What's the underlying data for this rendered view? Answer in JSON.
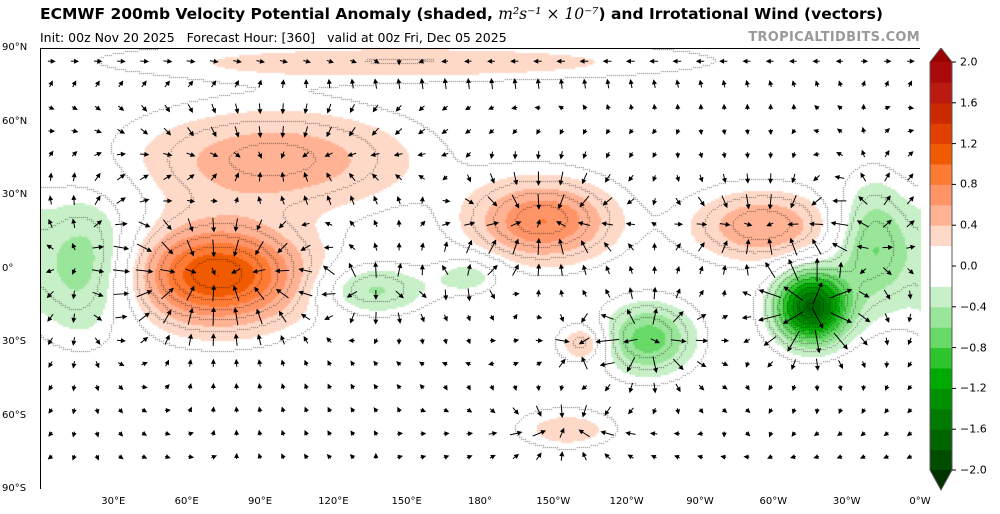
{
  "header": {
    "title_main": "ECMWF 200mb Velocity Potential Anomaly (shaded, ",
    "title_units": "m²s⁻¹ × 10⁻⁷",
    "title_end": ") and Irrotational Wind (vectors)",
    "init": "Init: 00z Nov 20 2025",
    "forecast_hour": "Forecast Hour: [360]",
    "valid": "valid at 00z Fri, Dec 05 2025",
    "brand": "TROPICALTIDBITS.COM"
  },
  "axes": {
    "lat_labels": [
      "90°N",
      "60°N",
      "30°N",
      "0°",
      "30°S",
      "60°S",
      "90°S"
    ],
    "lon_labels": [
      "30°E",
      "60°E",
      "90°E",
      "120°E",
      "150°E",
      "180°",
      "150°W",
      "120°W",
      "90°W",
      "60°W",
      "30°W",
      "0°W"
    ]
  },
  "colorbar": {
    "tick_labels": [
      "2.0",
      "1.6",
      "1.2",
      "0.8",
      "0.4",
      "0.0",
      "−0.4",
      "−0.8",
      "−1.2",
      "−1.6",
      "−2.0"
    ],
    "levels": [
      -2.0,
      -1.8,
      -1.6,
      -1.4,
      -1.2,
      -1.0,
      -0.8,
      -0.6,
      -0.4,
      -0.2,
      0.2,
      0.4,
      0.6,
      0.8,
      1.0,
      1.2,
      1.4,
      1.6,
      1.8,
      2.0
    ],
    "colors_neg": [
      "#003300",
      "#004d00",
      "#006400",
      "#007a00",
      "#009000",
      "#00aa00",
      "#2ec42e",
      "#66d966",
      "#99e599",
      "#c8f0c8"
    ],
    "color_zero": "#ffffff",
    "colors_pos": [
      "#ffd9c8",
      "#ffb394",
      "#ff9466",
      "#ff7a33",
      "#f05a00",
      "#e04000",
      "#cc2a00",
      "#bb1a10",
      "#aa0a0a",
      "#990000"
    ]
  },
  "chart_data": {
    "type": "heatmap",
    "title": "ECMWF 200mb Velocity Potential Anomaly and Irrotational Wind",
    "units": "m2 s-1 x 10^-7",
    "xlim": [
      0,
      360
    ],
    "ylim": [
      -90,
      90
    ],
    "anomaly_centers": [
      {
        "lon": 72,
        "lat": -2,
        "value": 1.2,
        "lon_radius": 35,
        "lat_radius": 20
      },
      {
        "lon": 95,
        "lat": 45,
        "value": 0.55,
        "lon_radius": 55,
        "lat_radius": 20
      },
      {
        "lon": 205,
        "lat": 20,
        "value": 0.8,
        "lon_radius": 28,
        "lat_radius": 16
      },
      {
        "lon": 295,
        "lat": 18,
        "value": 0.6,
        "lon_radius": 28,
        "lat_radius": 14
      },
      {
        "lon": 222,
        "lat": -30,
        "value": 0.4,
        "lon_radius": 10,
        "lat_radius": 8
      },
      {
        "lon": 215,
        "lat": -65,
        "value": 0.3,
        "lon_radius": 20,
        "lat_radius": 8
      },
      {
        "lon": 150,
        "lat": 85,
        "value": 0.3,
        "lon_radius": 120,
        "lat_radius": 8
      },
      {
        "lon": 315,
        "lat": -15,
        "value": -1.7,
        "lon_radius": 14,
        "lat_radius": 14
      },
      {
        "lon": 340,
        "lat": 10,
        "value": -0.6,
        "lon_radius": 15,
        "lat_radius": 25
      },
      {
        "lon": 18,
        "lat": 2,
        "value": -0.55,
        "lon_radius": 22,
        "lat_radius": 28
      },
      {
        "lon": 248,
        "lat": -28,
        "value": -0.7,
        "lon_radius": 18,
        "lat_radius": 14
      },
      {
        "lon": 135,
        "lat": -8,
        "value": -0.45,
        "lon_radius": 22,
        "lat_radius": 10
      },
      {
        "lon": 175,
        "lat": -2,
        "value": -0.3,
        "lon_radius": 14,
        "lat_radius": 8
      }
    ]
  }
}
